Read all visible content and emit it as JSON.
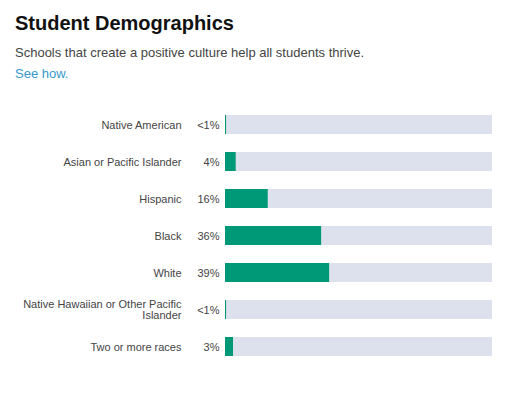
{
  "chart_data": {
    "type": "bar",
    "orientation": "horizontal",
    "title": "Student Demographics",
    "subtitle": "Schools that create a positive culture help all students thrive.",
    "annotations": [
      "See how."
    ],
    "categories": [
      "Native American",
      "Asian or Pacific Islander",
      "Hispanic",
      "Black",
      "White",
      "Native Hawaiian or Other Pacific\nIslander",
      "Two or more races"
    ],
    "values": [
      0.4,
      4,
      16,
      36,
      39,
      0.4,
      3
    ],
    "value_labels": [
      "<1%",
      "4%",
      "16%",
      "36%",
      "39%",
      "<1%",
      "3%"
    ],
    "data_labels": true,
    "color": "#009977",
    "xlim": [
      0,
      100
    ],
    "tick_labels": "y",
    "grid": false
  }
}
